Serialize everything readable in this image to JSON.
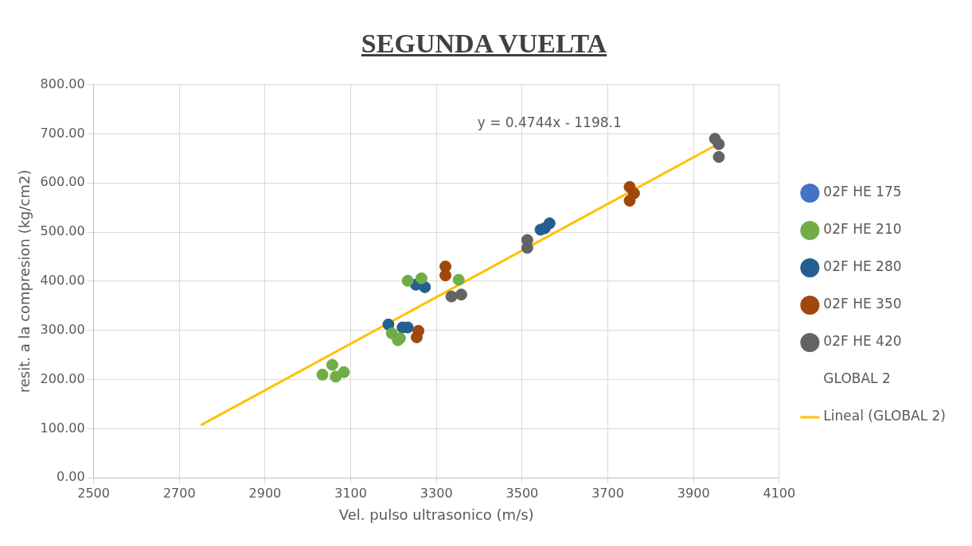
{
  "chart_data": {
    "type": "scatter",
    "title": "SEGUNDA VUELTA",
    "xlabel": "Vel. pulso ultrasonico (m/s)",
    "ylabel": "resit. a la compresion (kg/cm2)",
    "xlim": [
      2500,
      4100
    ],
    "xticks": [
      2500,
      2700,
      2900,
      3100,
      3300,
      3500,
      3700,
      3900,
      4100
    ],
    "ylim": [
      0,
      800
    ],
    "yticks": [
      {
        "value": 0,
        "label": "0.00"
      },
      {
        "value": 100,
        "label": "100.00"
      },
      {
        "value": 200,
        "label": "200.00"
      },
      {
        "value": 300,
        "label": "300.00"
      },
      {
        "value": 400,
        "label": "400.00"
      },
      {
        "value": 500,
        "label": "500.00"
      },
      {
        "value": 600,
        "label": "600.00"
      },
      {
        "value": 700,
        "label": "700.00"
      },
      {
        "value": 800,
        "label": "800.00"
      }
    ],
    "grid": true,
    "legend": "right",
    "marker": "circle",
    "annotations": [
      "y = 0.4744x - 1198.1"
    ],
    "series": [
      {
        "name": "02F HE 175",
        "color": "#4472c4"
      },
      {
        "name": "02F HE 210",
        "color": "#70ad47",
        "x": [
          3034,
          3057,
          3065,
          3084,
          3196,
          3210,
          3215,
          3233,
          3265,
          3352
        ],
        "values": [
          210,
          230,
          206,
          215,
          294,
          280,
          284,
          401,
          406,
          403
        ]
      },
      {
        "name": "02F HE 280",
        "color": "#255e91",
        "x": [
          3188,
          3221,
          3233,
          3252,
          3273,
          3543,
          3553,
          3564
        ],
        "values": [
          312,
          306,
          306,
          393,
          388,
          505,
          508,
          518
        ]
      },
      {
        "name": "02F HE 350",
        "color": "#9e480e",
        "x": [
          3258,
          3254,
          3321,
          3321,
          3751,
          3751,
          3761
        ],
        "values": [
          299,
          286,
          430,
          412,
          592,
          564,
          579
        ]
      },
      {
        "name": "02F HE 420",
        "color": "#636363",
        "x": [
          3335,
          3358,
          3512,
          3512,
          3950,
          3959,
          3959
        ],
        "values": [
          369,
          373,
          484,
          468,
          690,
          679,
          653
        ]
      },
      {
        "name": "GLOBAL 2"
      },
      {
        "name": "Lineal (GLOBAL 2)",
        "type": "line",
        "marker": "none",
        "line_style": "solid",
        "color": "#ffc000",
        "x": [
          2750,
          3950
        ],
        "values": [
          107,
          676
        ]
      }
    ]
  }
}
